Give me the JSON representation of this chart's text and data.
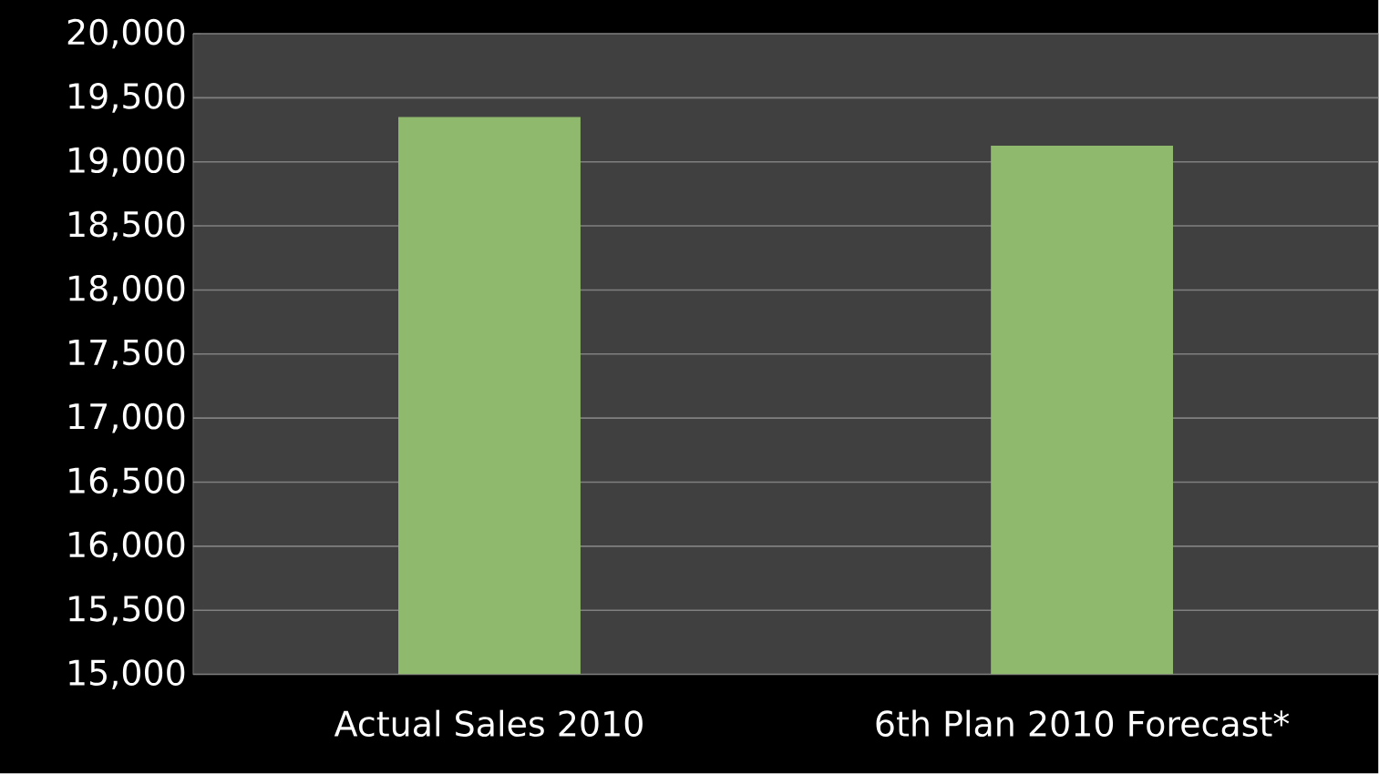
{
  "chart_data": {
    "type": "bar",
    "categories": [
      "Actual Sales 2010",
      "6th Plan 2010 Forecast*"
    ],
    "values": [
      19350,
      19125
    ],
    "color": "#8fb96c",
    "ylim": [
      15000,
      20000
    ],
    "yticks": [
      {
        "value": 15000,
        "label": "15,000"
      },
      {
        "value": 15500,
        "label": "15,500"
      },
      {
        "value": 16000,
        "label": "16,000"
      },
      {
        "value": 16500,
        "label": "16,500"
      },
      {
        "value": 17000,
        "label": "17,000"
      },
      {
        "value": 17500,
        "label": "17,500"
      },
      {
        "value": 18000,
        "label": "18,000"
      },
      {
        "value": 18500,
        "label": "18,500"
      },
      {
        "value": 19000,
        "label": "19,000"
      },
      {
        "value": 19500,
        "label": "19,500"
      },
      {
        "value": 20000,
        "label": "20,000"
      }
    ],
    "grid": "y"
  }
}
